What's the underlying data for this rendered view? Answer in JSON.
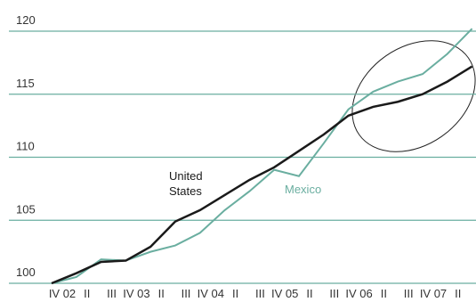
{
  "chart_data": {
    "type": "line",
    "categories": [
      "IV 02",
      "II",
      "III",
      "IV 03",
      "II",
      "III",
      "IV 04",
      "II",
      "III",
      "IV 05",
      "II",
      "III",
      "IV 06",
      "II",
      "III",
      "IV 07",
      "II",
      "II"
    ],
    "series": [
      {
        "name": "United States",
        "label_lines": [
          "United",
          "States"
        ],
        "color": "#1a1a1a",
        "values": [
          100,
          100.8,
          101.7,
          101.8,
          102.9,
          104.9,
          105.8,
          107.0,
          108.2,
          109.2,
          110.5,
          111.8,
          113.3,
          114.0,
          114.4,
          115.0,
          116.0,
          117.2
        ]
      },
      {
        "name": "Mexico",
        "color": "#6aaea0",
        "values": [
          100,
          100.5,
          101.9,
          101.8,
          102.5,
          103.0,
          104.0,
          105.8,
          107.3,
          109.0,
          108.5,
          111.1,
          113.8,
          115.2,
          116.0,
          116.6,
          118.2,
          120.2
        ]
      }
    ],
    "ylim": [
      100,
      120
    ],
    "yticks": [
      100,
      105,
      110,
      115,
      120
    ],
    "grid": true
  }
}
